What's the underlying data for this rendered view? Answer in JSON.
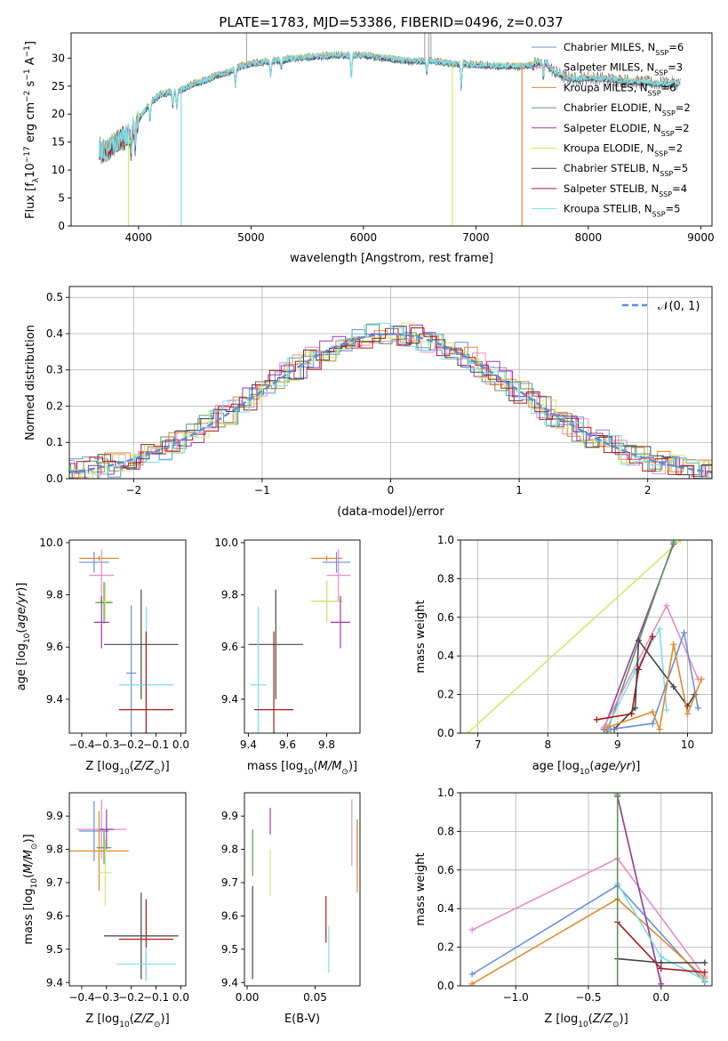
{
  "chart_data": [
    {
      "id": "spectrum",
      "type": "line",
      "title": "PLATE=1783, MJD=53386, FIBERID=0496, z=0.037",
      "xlabel": "wavelength [Angstrom, rest frame]",
      "ylabel": "Flux [f_λ10^-17 erg cm^-2 s^-1 A^-1]",
      "xlim": [
        3400,
        9100
      ],
      "ylim": [
        0,
        34.5
      ],
      "xticks": [
        4000,
        5000,
        6000,
        7000,
        8000,
        9000
      ],
      "yticks": [
        0,
        5,
        10,
        15,
        20,
        25,
        30
      ],
      "grid": false,
      "legend_position": "top-right",
      "continuum": {
        "x": [
          3650,
          3700,
          3800,
          3900,
          3950,
          4000,
          4100,
          4200,
          4300,
          4400,
          4500,
          4600,
          4700,
          4800,
          4900,
          5000,
          5200,
          5400,
          5600,
          5800,
          6000,
          6200,
          6400,
          6600,
          6800,
          7000,
          7200,
          7400,
          7500,
          7600,
          7700,
          7800,
          7900,
          8000,
          8200,
          8400,
          8600,
          8800
        ],
        "y": [
          14,
          13,
          15,
          16,
          17.5,
          19,
          22,
          23.5,
          24,
          24.5,
          25.5,
          26,
          27,
          27.5,
          28.5,
          29,
          29.5,
          30,
          30.3,
          30.5,
          30.5,
          30,
          29.5,
          29.5,
          29,
          28.8,
          28.6,
          28.5,
          28.8,
          29.5,
          27.5,
          26.5,
          26.2,
          26.5,
          26.2,
          25.8,
          25.5,
          25.5
        ]
      },
      "series": [
        {
          "name": "Chabrier MILES, N_SSP=6",
          "legend": "Chabrier MILES, N",
          "nssp": "6",
          "color": "#6a8fd8"
        },
        {
          "name": "Salpeter MILES, N_SSP=3",
          "legend": "Salpeter MILES, N",
          "nssp": "3",
          "color": "#e88bc4"
        },
        {
          "name": "Kroupa MILES, N_SSP=6",
          "legend": "Kroupa MILES, N",
          "nssp": "6",
          "color": "#e08a2c"
        },
        {
          "name": "Chabrier ELODIE, N_SSP=2",
          "legend": "Chabrier ELODIE, N",
          "nssp": "2",
          "color": "#5a9a5a"
        },
        {
          "name": "Salpeter ELODIE, N_SSP=2",
          "legend": "Salpeter ELODIE, N",
          "nssp": "2",
          "color": "#9a3aaa"
        },
        {
          "name": "Kroupa ELODIE, N_SSP=2",
          "legend": "Kroupa ELODIE, N",
          "nssp": "2",
          "color": "#d4e86a"
        },
        {
          "name": "Chabrier STELIB, N_SSP=5",
          "legend": "Chabrier STELIB, N",
          "nssp": "5",
          "color": "#444444"
        },
        {
          "name": "Salpeter STELIB, N_SSP=4",
          "legend": "Salpeter STELIB, N",
          "nssp": "4",
          "color": "#aa1a1a"
        },
        {
          "name": "Kroupa STELIB, N_SSP=5",
          "legend": "Kroupa STELIB, N",
          "nssp": "5",
          "color": "#7fdce8"
        }
      ],
      "drops": [
        {
          "x": 3910,
          "color": "#d4e86a"
        },
        {
          "x": 4380,
          "color": "#7fdce8"
        },
        {
          "x": 6790,
          "color": "#d4e86a"
        },
        {
          "x": 7410,
          "color": "#e08a2c"
        }
      ]
    },
    {
      "id": "residuals",
      "type": "histogram",
      "xlabel": "(data-model)/error",
      "ylabel": "Normed distribution",
      "xlim": [
        -2.5,
        2.5
      ],
      "ylim": [
        0,
        0.53
      ],
      "xticks": [
        -2,
        -1,
        0,
        1,
        2
      ],
      "xtick_labels": [
        "−2",
        "−1",
        "0",
        "1",
        "2"
      ],
      "yticks": [
        0.0,
        0.1,
        0.2,
        0.3,
        0.4,
        0.5
      ],
      "ytick_labels": [
        "0.0",
        "0.1",
        "0.2",
        "0.3",
        "0.4",
        "0.5"
      ],
      "grid": true,
      "legend": "𝒩(0, 1)",
      "legend_position": "top-right"
    },
    {
      "id": "age_vs_Z",
      "type": "errorbar",
      "xlabel": "Z [log10(Z/Z⊙)]",
      "ylabel": "age [log10(age/yr)]",
      "xlim": [
        -0.45,
        0.02
      ],
      "ylim": [
        9.27,
        10.01
      ],
      "xticks": [
        -0.4,
        -0.3,
        -0.2,
        -0.1,
        0.0
      ],
      "xtick_labels": [
        "−0.4",
        "−0.3",
        "−0.2",
        "−0.1",
        "0.0"
      ],
      "yticks": [
        9.4,
        9.6,
        9.8,
        10.0
      ],
      "ytick_labels": [
        "9.4",
        "9.6",
        "9.8",
        "10.0"
      ],
      "points": [
        {
          "x": -0.33,
          "xerr": 0.08,
          "y": 9.94,
          "yerr": 0.01,
          "color": "#e08a2c"
        },
        {
          "x": -0.35,
          "xerr": 0.06,
          "y": 9.925,
          "yerr": 0.04,
          "color": "#6a8fd8"
        },
        {
          "x": -0.32,
          "xerr": 0.05,
          "y": 9.875,
          "yerr": 0.1,
          "color": "#e88bc4"
        },
        {
          "x": -0.31,
          "xerr": 0.035,
          "y": 9.77,
          "yerr": 0.08,
          "color": "#5a9a5a"
        },
        {
          "x": -0.305,
          "xerr": 0.025,
          "y": 9.775,
          "yerr": 0.07,
          "color": "#d4e86a"
        },
        {
          "x": -0.32,
          "xerr": 0.03,
          "y": 9.695,
          "yerr": 0.1,
          "color": "#9a3aaa"
        },
        {
          "x": -0.16,
          "xerr": 0.15,
          "y": 9.61,
          "yerr": 0.21,
          "color": "#444444"
        },
        {
          "x": -0.2,
          "xerr": 0.02,
          "y": 9.5,
          "yerr": 0.26,
          "color": "#6a8fd8"
        },
        {
          "x": -0.14,
          "xerr": 0.11,
          "y": 9.455,
          "yerr": 0.3,
          "color": "#7fdce8"
        },
        {
          "x": -0.14,
          "xerr": 0.11,
          "y": 9.36,
          "yerr": 0.3,
          "color": "#aa1a1a"
        }
      ]
    },
    {
      "id": "age_vs_mass",
      "type": "errorbar",
      "xlabel": "mass [log10(M/M⊙)]",
      "xlim": [
        9.38,
        9.97
      ],
      "ylim": [
        9.27,
        10.01
      ],
      "xticks": [
        9.4,
        9.6,
        9.8
      ],
      "xtick_labels": [
        "9.4",
        "9.6",
        "9.8"
      ],
      "yticks": [
        9.4,
        9.6,
        9.8,
        10.0
      ],
      "ytick_labels": [
        "9.4",
        "9.6",
        "9.8",
        "10.0"
      ],
      "points": [
        {
          "x": 9.8,
          "xerr": 0.08,
          "y": 9.94,
          "yerr": 0.01,
          "color": "#e08a2c"
        },
        {
          "x": 9.85,
          "xerr": 0.07,
          "y": 9.925,
          "yerr": 0.04,
          "color": "#6a8fd8"
        },
        {
          "x": 9.86,
          "xerr": 0.06,
          "y": 9.875,
          "yerr": 0.1,
          "color": "#e88bc4"
        },
        {
          "x": 9.8,
          "xerr": 0.08,
          "y": 9.775,
          "yerr": 0.08,
          "color": "#5a9a5a"
        },
        {
          "x": 9.8,
          "xerr": 0.08,
          "y": 9.775,
          "yerr": 0.08,
          "color": "#d4e86a"
        },
        {
          "x": 9.87,
          "xerr": 0.05,
          "y": 9.695,
          "yerr": 0.1,
          "color": "#9a3aaa"
        },
        {
          "x": 9.54,
          "xerr": 0.14,
          "y": 9.61,
          "yerr": 0.21,
          "color": "#444444"
        },
        {
          "x": 9.45,
          "xerr": 0.04,
          "y": 9.455,
          "yerr": 0.3,
          "color": "#7fdce8"
        },
        {
          "x": 9.53,
          "xerr": 0.1,
          "y": 9.36,
          "yerr": 0.3,
          "color": "#aa1a1a"
        }
      ]
    },
    {
      "id": "weight_vs_age",
      "type": "line",
      "xlabel": "age [log10(age/yr)]",
      "ylabel": "mass weight",
      "xlim": [
        6.75,
        10.35
      ],
      "ylim": [
        0,
        1
      ],
      "xticks": [
        7,
        8,
        9,
        10
      ],
      "xtick_labels": [
        "7",
        "8",
        "9",
        "10"
      ],
      "yticks": [
        0.0,
        0.2,
        0.4,
        0.6,
        0.8,
        1.0
      ],
      "ytick_labels": [
        "0.0",
        "0.2",
        "0.4",
        "0.6",
        "0.8",
        "1.0"
      ],
      "grid": true,
      "series": [
        {
          "color": "#d4e86a",
          "x": [
            6.85,
            9.9
          ],
          "y": [
            0.0,
            1.0
          ]
        },
        {
          "color": "#9a3aaa",
          "x": [
            8.8,
            9.8
          ],
          "y": [
            0.02,
            0.98
          ]
        },
        {
          "color": "#5a9a5a",
          "x": [
            8.85,
            9.8
          ],
          "y": [
            0.01,
            0.99
          ]
        },
        {
          "color": "#e88bc4",
          "x": [
            8.8,
            9.7,
            10.15
          ],
          "y": [
            0.03,
            0.66,
            0.28
          ]
        },
        {
          "color": "#7fdce8",
          "x": [
            8.85,
            9.25,
            9.6,
            9.7
          ],
          "y": [
            0.03,
            0.32,
            0.54,
            0.12
          ]
        },
        {
          "color": "#aa1a1a",
          "x": [
            8.7,
            9.2,
            9.3,
            9.5
          ],
          "y": [
            0.07,
            0.1,
            0.33,
            0.5
          ]
        },
        {
          "color": "#444444",
          "x": [
            8.95,
            9.25,
            9.3,
            9.8,
            10.0,
            10.1
          ],
          "y": [
            0.02,
            0.13,
            0.48,
            0.24,
            0.14,
            0.2
          ]
        },
        {
          "color": "#6a8fd8",
          "x": [
            8.9,
            9.5,
            9.95,
            10.15
          ],
          "y": [
            0.02,
            0.05,
            0.52,
            0.13
          ]
        },
        {
          "color": "#e08a2c",
          "x": [
            8.85,
            9.5,
            9.6,
            9.8,
            10.0,
            10.2
          ],
          "y": [
            0.03,
            0.11,
            0.02,
            0.46,
            0.1,
            0.28
          ]
        }
      ]
    },
    {
      "id": "mass_vs_Z",
      "type": "errorbar",
      "xlabel": "Z [log10(Z/Z⊙)]",
      "ylabel": "mass [log10(M/M⊙)]",
      "xlim": [
        -0.45,
        0.02
      ],
      "ylim": [
        9.39,
        9.97
      ],
      "xticks": [
        -0.4,
        -0.3,
        -0.2,
        -0.1,
        0.0
      ],
      "xtick_labels": [
        "−0.4",
        "−0.3",
        "−0.2",
        "−0.1",
        "0.0"
      ],
      "yticks": [
        9.4,
        9.5,
        9.6,
        9.7,
        9.8,
        9.9
      ],
      "ytick_labels": [
        "9.4",
        "9.5",
        "9.6",
        "9.7",
        "9.8",
        "9.9"
      ],
      "points": [
        {
          "x": -0.35,
          "xerr": 0.06,
          "y": 9.855,
          "yerr": 0.09,
          "color": "#6a8fd8"
        },
        {
          "x": -0.32,
          "xerr": 0.1,
          "y": 9.86,
          "yerr": 0.09,
          "color": "#e88bc4"
        },
        {
          "x": -0.3,
          "xerr": 0.03,
          "y": 9.86,
          "yerr": 0.06,
          "color": "#9a3aaa"
        },
        {
          "x": -0.31,
          "xerr": 0.03,
          "y": 9.805,
          "yerr": 0.05,
          "color": "#5a9a5a"
        },
        {
          "x": -0.33,
          "xerr": 0.12,
          "y": 9.795,
          "yerr": 0.12,
          "color": "#e08a2c"
        },
        {
          "x": -0.305,
          "xerr": 0.025,
          "y": 9.73,
          "yerr": 0.1,
          "color": "#d4e86a"
        },
        {
          "x": -0.16,
          "xerr": 0.15,
          "y": 9.54,
          "yerr": 0.13,
          "color": "#444444"
        },
        {
          "x": -0.14,
          "xerr": 0.11,
          "y": 9.53,
          "yerr": 0.12,
          "color": "#aa1a1a"
        },
        {
          "x": -0.14,
          "xerr": 0.12,
          "y": 9.455,
          "yerr": 0.05,
          "color": "#7fdce8"
        }
      ]
    },
    {
      "id": "mass_vs_ebv",
      "type": "errorbar",
      "xlabel": "E(B-V)",
      "xlim": [
        -0.002,
        0.083
      ],
      "ylim": [
        9.39,
        9.97
      ],
      "xticks": [
        0.0,
        0.05
      ],
      "xtick_labels": [
        "0.00",
        "0.05"
      ],
      "yticks": [
        9.4,
        9.5,
        9.6,
        9.7,
        9.8,
        9.9
      ],
      "ytick_labels": [
        "9.4",
        "9.5",
        "9.6",
        "9.7",
        "9.8",
        "9.9"
      ],
      "points": [
        {
          "x": 0.004,
          "y": 9.79,
          "yerr": 0.07,
          "color": "#5a9a5a"
        },
        {
          "x": 0.004,
          "y": 9.55,
          "yerr": 0.14,
          "color": "#444444"
        },
        {
          "x": 0.017,
          "y": 9.885,
          "yerr": 0.04,
          "color": "#9a3aaa"
        },
        {
          "x": 0.017,
          "y": 9.73,
          "yerr": 0.07,
          "color": "#d4e86a"
        },
        {
          "x": 0.058,
          "y": 9.59,
          "yerr": 0.07,
          "color": "#aa1a1a"
        },
        {
          "x": 0.06,
          "y": 9.5,
          "yerr": 0.07,
          "color": "#7fdce8"
        },
        {
          "x": 0.077,
          "y": 9.85,
          "yerr": 0.1,
          "color": "#e88bc4"
        },
        {
          "x": 0.081,
          "y": 9.82,
          "yerr": 0.07,
          "color": "#6a8fd8"
        },
        {
          "x": 0.081,
          "y": 9.78,
          "yerr": 0.11,
          "color": "#e08a2c"
        }
      ]
    },
    {
      "id": "weight_vs_Z",
      "type": "line",
      "xlabel": "Z [log10(Z/Z⊙)]",
      "ylabel": "mass weight",
      "xlim": [
        -1.38,
        0.35
      ],
      "ylim": [
        0,
        1
      ],
      "xticks": [
        -1.0,
        -0.5,
        0.0
      ],
      "xtick_labels": [
        "−1.0",
        "−0.5",
        "0.0"
      ],
      "yticks": [
        0.0,
        0.2,
        0.4,
        0.6,
        0.8,
        1.0
      ],
      "ytick_labels": [
        "0.0",
        "0.2",
        "0.4",
        "0.6",
        "0.8",
        "1.0"
      ],
      "grid": true,
      "series": [
        {
          "color": "#e88bc4",
          "x": [
            -1.3,
            -0.3,
            0.3
          ],
          "y": [
            0.29,
            0.66,
            0.05
          ]
        },
        {
          "color": "#6a8fd8",
          "x": [
            -1.3,
            -0.3,
            0.3
          ],
          "y": [
            0.06,
            0.52,
            0.02
          ]
        },
        {
          "color": "#e08a2c",
          "x": [
            -1.3,
            -0.3,
            0.3
          ],
          "y": [
            0.01,
            0.45,
            0.04
          ]
        },
        {
          "color": "#d4e86a",
          "x": [
            -0.3,
            0.0
          ],
          "y": [
            0.99,
            0.0
          ]
        },
        {
          "color": "#9a3aaa",
          "x": [
            -0.3,
            0.0
          ],
          "y": [
            0.98,
            0.01
          ]
        },
        {
          "color": "#7fdce8",
          "x": [
            -0.3,
            0.0,
            0.3
          ],
          "y": [
            0.53,
            0.15,
            0.03
          ]
        },
        {
          "color": "#444444",
          "x": [
            -0.3,
            0.0,
            0.3
          ],
          "y": [
            0.14,
            0.12,
            0.12
          ]
        },
        {
          "color": "#aa1a1a",
          "x": [
            -0.3,
            0.0,
            0.3
          ],
          "y": [
            0.33,
            0.09,
            0.07
          ]
        },
        {
          "color": "#5a9a5a",
          "x": [
            -0.3,
            -0.3
          ],
          "y": [
            0.99,
            0.0
          ]
        }
      ]
    }
  ]
}
